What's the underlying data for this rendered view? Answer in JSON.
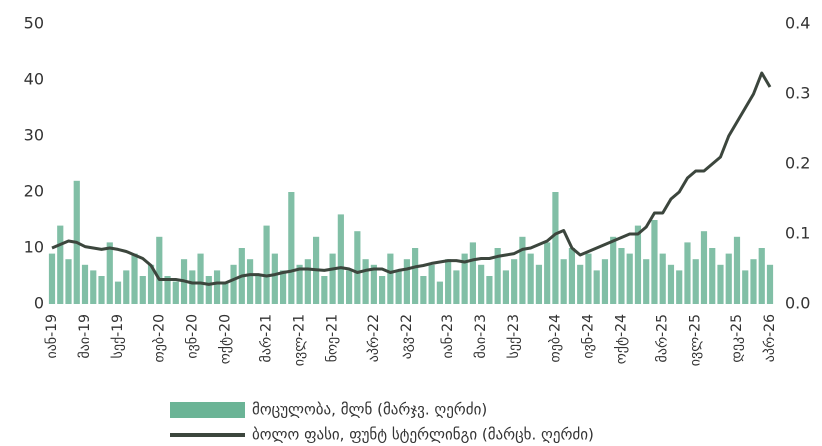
{
  "chart_data": {
    "type": "bar_line",
    "categories": [
      "იან-19",
      null,
      null,
      null,
      "მაი-19",
      null,
      null,
      null,
      "სექ-19",
      null,
      null,
      null,
      null,
      "თებ-20",
      null,
      null,
      null,
      "ივნ-20",
      null,
      null,
      null,
      "ოქტ-20",
      null,
      null,
      null,
      null,
      "მარ-21",
      null,
      null,
      null,
      "ივლ-21",
      null,
      null,
      null,
      "ნოე-21",
      null,
      null,
      null,
      null,
      "აპრ-22",
      null,
      null,
      null,
      "აგვ-22",
      null,
      null,
      null,
      null,
      "იან-23",
      null,
      null,
      null,
      "მაი-23",
      null,
      null,
      null,
      "სექ-23",
      null,
      null,
      null,
      null,
      "თებ-24",
      null,
      null,
      null,
      "ივნ-24",
      null,
      null,
      null,
      "ოქტ-24",
      null,
      null,
      null,
      null,
      "მარ-25",
      null,
      null,
      null,
      "ივლ-25",
      null,
      null,
      null,
      null,
      "დეკ-25",
      null,
      null,
      null,
      "აპრ-26"
    ],
    "series": [
      {
        "name": "მოცულობა, მლნ (მარჯვ. ღერძი)",
        "color": "#6bb496",
        "values": [
          9,
          14,
          8,
          22,
          7,
          6,
          5,
          11,
          4,
          6,
          9,
          5,
          7,
          12,
          5,
          4,
          8,
          6,
          9,
          5,
          6,
          4,
          7,
          10,
          8,
          5,
          14,
          9,
          6,
          20,
          7,
          8,
          12,
          5,
          9,
          16,
          6,
          13,
          8,
          7,
          5,
          9,
          6,
          8,
          10,
          5,
          7,
          4,
          8,
          6,
          9,
          11,
          7,
          5,
          10,
          6,
          8,
          12,
          9,
          7,
          11,
          20,
          8,
          10,
          7,
          9,
          6,
          8,
          12,
          10,
          9,
          14,
          8,
          15,
          9,
          7,
          6,
          11,
          8,
          13,
          10,
          7,
          9,
          12,
          6,
          8,
          10,
          7
        ]
      },
      {
        "name": "ბოლო ფასი, ფუნტ სტერლინგი (მარცხ. ღერძი)",
        "color": "#3c463d",
        "axis": "y2",
        "values": [
          0.08,
          0.085,
          0.09,
          0.088,
          0.082,
          0.08,
          0.078,
          0.08,
          0.078,
          0.075,
          0.07,
          0.065,
          0.055,
          0.035,
          0.035,
          0.035,
          0.033,
          0.03,
          0.03,
          0.028,
          0.03,
          0.03,
          0.035,
          0.04,
          0.042,
          0.042,
          0.04,
          0.042,
          0.045,
          0.047,
          0.05,
          0.05,
          0.049,
          0.048,
          0.05,
          0.052,
          0.05,
          0.045,
          0.048,
          0.05,
          0.05,
          0.045,
          0.048,
          0.05,
          0.053,
          0.055,
          0.058,
          0.06,
          0.062,
          0.062,
          0.06,
          0.063,
          0.065,
          0.065,
          0.068,
          0.07,
          0.072,
          0.078,
          0.08,
          0.085,
          0.09,
          0.1,
          0.105,
          0.08,
          0.07,
          0.075,
          0.08,
          0.085,
          0.09,
          0.095,
          0.1,
          0.1,
          0.11,
          0.13,
          0.13,
          0.15,
          0.16,
          0.18,
          0.19,
          0.19,
          0.2,
          0.21,
          0.24,
          0.26,
          0.28,
          0.3,
          0.33,
          0.31
        ]
      }
    ],
    "ylim": [
      0,
      50
    ],
    "yticks": [
      0,
      10,
      20,
      30,
      40,
      50
    ],
    "y2lim": [
      0,
      0.4
    ],
    "y2ticks": [
      {
        "value": 0,
        "label": "0.0"
      },
      0.1,
      0.2,
      0.3,
      0.4
    ]
  }
}
